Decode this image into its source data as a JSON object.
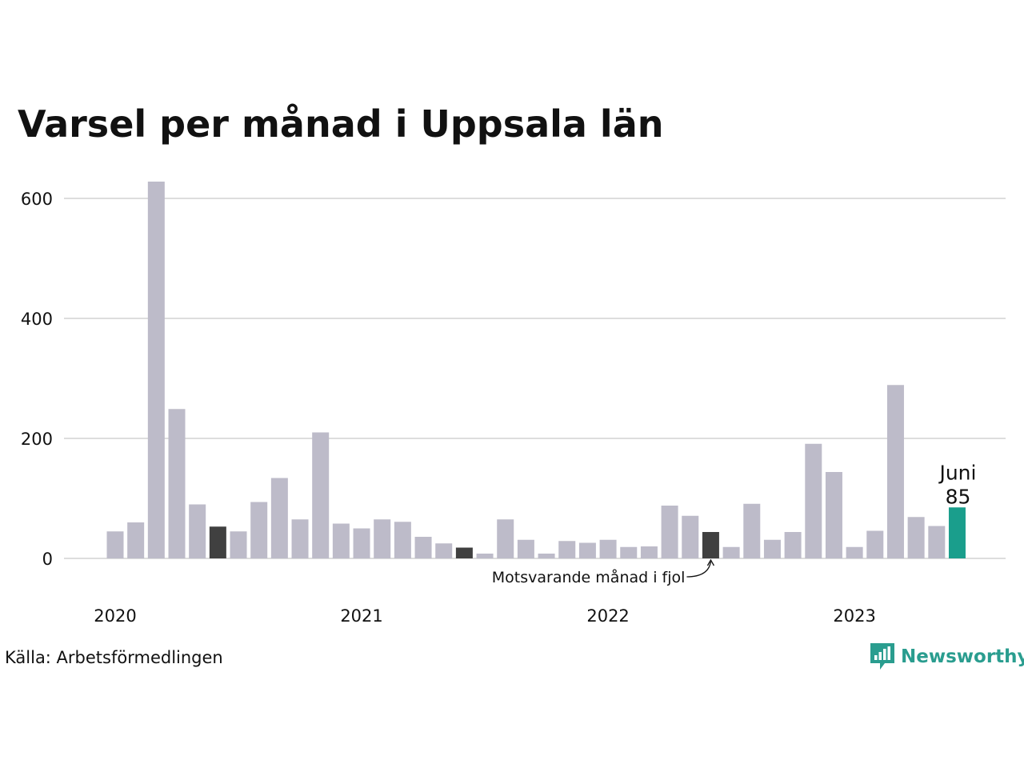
{
  "title": "Varsel per månad i Uppsala län",
  "source": "Källa: Arbetsförmedlingen",
  "brand": "Newsworthy",
  "colors": {
    "bar": "#bdbbc9",
    "same_month_last_years": "#404040",
    "highlight": "#1a9e8c",
    "grid": "#dddddd",
    "brand": "#2a9d8f"
  },
  "chart_data": {
    "type": "bar",
    "ylim": [
      0,
      640
    ],
    "yticks": [
      0,
      200,
      400,
      600
    ],
    "x_tick_labels": [
      "2020",
      "2021",
      "2022",
      "2023"
    ],
    "categories": [
      "2020-01",
      "2020-02",
      "2020-03",
      "2020-04",
      "2020-05",
      "2020-06",
      "2020-07",
      "2020-08",
      "2020-09",
      "2020-10",
      "2020-11",
      "2020-12",
      "2021-01",
      "2021-02",
      "2021-03",
      "2021-04",
      "2021-05",
      "2021-06",
      "2021-07",
      "2021-08",
      "2021-09",
      "2021-10",
      "2021-11",
      "2021-12",
      "2022-01",
      "2022-02",
      "2022-03",
      "2022-04",
      "2022-05",
      "2022-06",
      "2022-07",
      "2022-08",
      "2022-09",
      "2022-10",
      "2022-11",
      "2022-12",
      "2023-01",
      "2023-02",
      "2023-03",
      "2023-04",
      "2023-05",
      "2023-06"
    ],
    "values": [
      45,
      60,
      628,
      249,
      90,
      53,
      45,
      94,
      134,
      65,
      210,
      58,
      50,
      65,
      61,
      36,
      25,
      18,
      8,
      65,
      31,
      8,
      29,
      26,
      31,
      19,
      20,
      88,
      71,
      44,
      19,
      91,
      31,
      44,
      191,
      144,
      19,
      46,
      289,
      69,
      54,
      85
    ],
    "same_month_last_years": [
      "2020-06",
      "2021-06",
      "2022-06"
    ],
    "highlight": {
      "month": "2023-06",
      "label": "Juni",
      "value": "85"
    },
    "annotation": "Motsvarande månad i fjol",
    "grid": true
  }
}
